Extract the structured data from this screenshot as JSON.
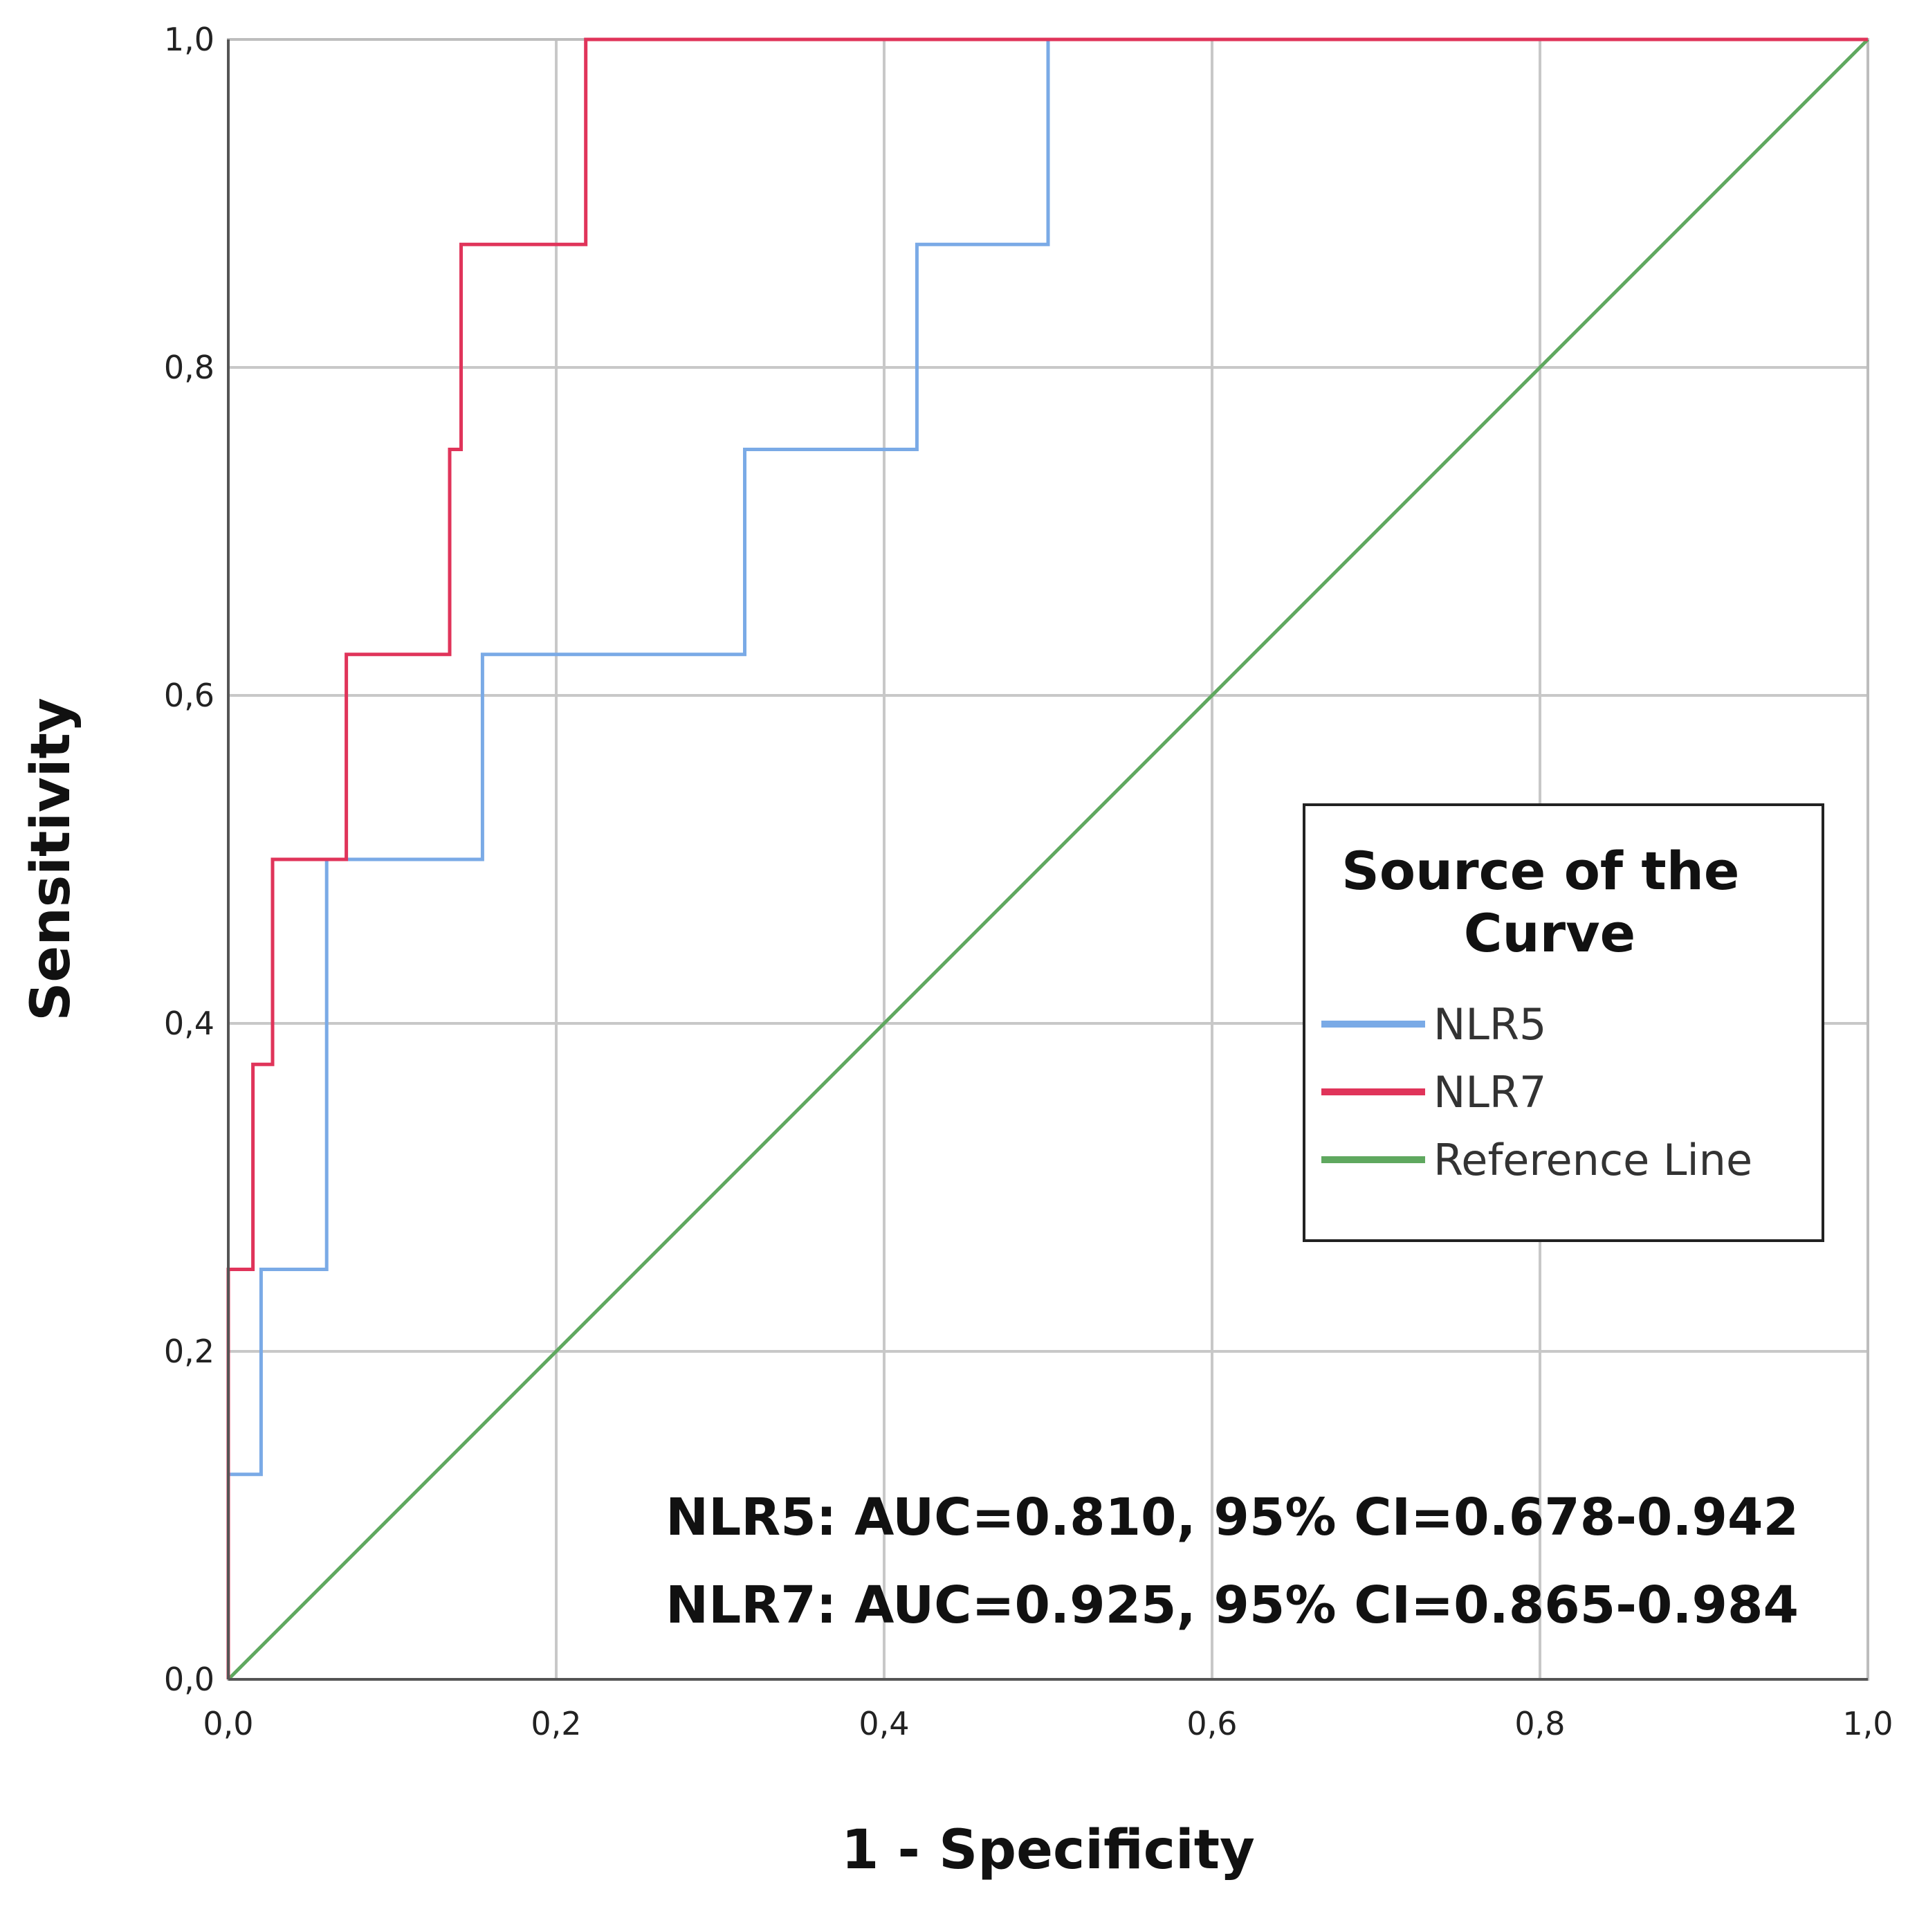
{
  "chart_data": {
    "type": "line",
    "title": "",
    "xlabel": "1 - Specificity",
    "ylabel": "Sensitivity",
    "xlim": [
      0,
      1
    ],
    "ylim": [
      0,
      1
    ],
    "grid": true,
    "xticks": [
      "0,0",
      "0,2",
      "0,4",
      "0,6",
      "0,8",
      "1,0"
    ],
    "yticks": [
      "0,0",
      "0,2",
      "0,4",
      "0,6",
      "0,8",
      "1,0"
    ],
    "legend": {
      "title": "Source of the Curve",
      "placement": "center-right"
    },
    "series": [
      {
        "name": "NLR5",
        "color": "#7aaae6",
        "points": [
          [
            0,
            0
          ],
          [
            0,
            0.125
          ],
          [
            0.02,
            0.125
          ],
          [
            0.02,
            0.25
          ],
          [
            0.06,
            0.25
          ],
          [
            0.06,
            0.5
          ],
          [
            0.155,
            0.5
          ],
          [
            0.155,
            0.625
          ],
          [
            0.315,
            0.625
          ],
          [
            0.315,
            0.75
          ],
          [
            0.42,
            0.75
          ],
          [
            0.42,
            0.875
          ],
          [
            0.5,
            0.875
          ],
          [
            0.5,
            1.0
          ],
          [
            1.0,
            1.0
          ]
        ]
      },
      {
        "name": "NLR7",
        "color": "#e0345a",
        "points": [
          [
            0,
            0
          ],
          [
            0,
            0.25
          ],
          [
            0.015,
            0.25
          ],
          [
            0.015,
            0.375
          ],
          [
            0.027,
            0.375
          ],
          [
            0.027,
            0.5
          ],
          [
            0.072,
            0.5
          ],
          [
            0.072,
            0.625
          ],
          [
            0.135,
            0.625
          ],
          [
            0.135,
            0.75
          ],
          [
            0.142,
            0.75
          ],
          [
            0.142,
            0.875
          ],
          [
            0.218,
            0.875
          ],
          [
            0.218,
            1.0
          ],
          [
            1.0,
            1.0
          ]
        ]
      },
      {
        "name": "Reference Line",
        "color": "#5fa85f",
        "points": [
          [
            0,
            0
          ],
          [
            1,
            1
          ]
        ]
      }
    ],
    "annotations": [
      "NLR5: AUC=0.810, 95% CI=0.678-0.942",
      "NLR7: AUC=0.925, 95% CI=0.865-0.984"
    ]
  }
}
